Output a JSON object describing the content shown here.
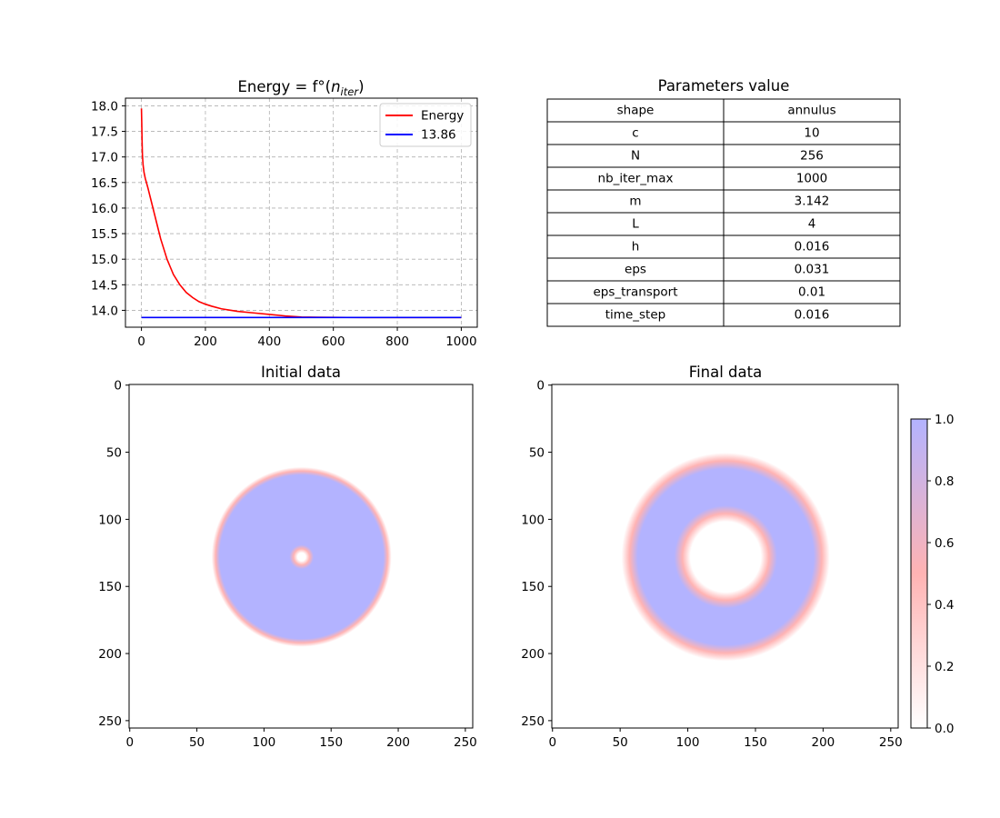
{
  "colors": {
    "energy_line": "#ff0000",
    "reference_line": "#0000ff",
    "grid": "#b0b0b0",
    "colormap_low": "#ffffff",
    "colormap_mid": "#ffb3b3",
    "colormap_high": "#b3b3ff"
  },
  "chart_data": [
    {
      "type": "line",
      "title_prefix": "Energy = f°(",
      "title_var": "n",
      "title_sub": "iter",
      "title_suffix": ")",
      "xlim": [
        -50,
        1050
      ],
      "ylim": [
        13.67,
        18.15
      ],
      "xticks": [
        0,
        200,
        400,
        600,
        800,
        1000
      ],
      "yticks": [
        14.0,
        14.5,
        15.0,
        15.5,
        16.0,
        16.5,
        17.0,
        17.5,
        18.0
      ],
      "ytick_labels": [
        "14.0",
        "14.5",
        "15.0",
        "15.5",
        "16.0",
        "16.5",
        "17.0",
        "17.5",
        "18.0"
      ],
      "grid": true,
      "legend_placement": "top-right",
      "series": [
        {
          "name": "Energy",
          "color": "#ff0000",
          "x": [
            0,
            1,
            2,
            3,
            5,
            8,
            12,
            20,
            30,
            40,
            50,
            60,
            70,
            80,
            90,
            100,
            120,
            140,
            160,
            180,
            200,
            220,
            250,
            280,
            300,
            350,
            400,
            450,
            500,
            550,
            600,
            700,
            800,
            900,
            1000
          ],
          "y": [
            17.95,
            17.65,
            17.3,
            17.05,
            16.85,
            16.7,
            16.58,
            16.4,
            16.15,
            15.9,
            15.65,
            15.4,
            15.2,
            15.0,
            14.85,
            14.7,
            14.5,
            14.35,
            14.25,
            14.17,
            14.12,
            14.08,
            14.03,
            14.0,
            13.98,
            13.95,
            13.92,
            13.89,
            13.87,
            13.865,
            13.862,
            13.86,
            13.86,
            13.86,
            13.86
          ]
        },
        {
          "name": "13.86",
          "color": "#0000ff",
          "x": [
            0,
            1000
          ],
          "y": [
            13.86,
            13.86
          ]
        }
      ]
    },
    {
      "type": "table",
      "title": "Parameters value",
      "rows": [
        [
          "shape",
          "annulus"
        ],
        [
          "c",
          "10"
        ],
        [
          "N",
          "256"
        ],
        [
          "nb_iter_max",
          "1000"
        ],
        [
          "m",
          "3.142"
        ],
        [
          "L",
          "4"
        ],
        [
          "h",
          "0.016"
        ],
        [
          "eps",
          "0.031"
        ],
        [
          "eps_transport",
          "0.01"
        ],
        [
          "time_step",
          "0.016"
        ]
      ]
    },
    {
      "type": "heatmap",
      "title": "Initial data",
      "grid_size": 256,
      "xticks": [
        0,
        50,
        100,
        150,
        200,
        250
      ],
      "yticks": [
        0,
        50,
        100,
        150,
        200,
        250
      ],
      "shape": "annulus",
      "center": [
        128,
        128
      ],
      "inner_radius": 6,
      "outer_radius": 64,
      "interface_width": 3
    },
    {
      "type": "heatmap",
      "title": "Final data",
      "grid_size": 256,
      "xticks": [
        0,
        50,
        100,
        150,
        200,
        250
      ],
      "yticks": [
        0,
        50,
        100,
        150,
        200,
        250
      ],
      "shape": "annulus",
      "center": [
        128,
        128
      ],
      "inner_radius": 32,
      "outer_radius": 71,
      "interface_width": 6
    }
  ],
  "colorbar": {
    "vmin": 0.0,
    "vmax": 1.0,
    "ticks": [
      0.0,
      0.2,
      0.4,
      0.6,
      0.8,
      1.0
    ],
    "tick_labels": [
      "0.0",
      "0.2",
      "0.4",
      "0.6",
      "0.8",
      "1.0"
    ]
  }
}
